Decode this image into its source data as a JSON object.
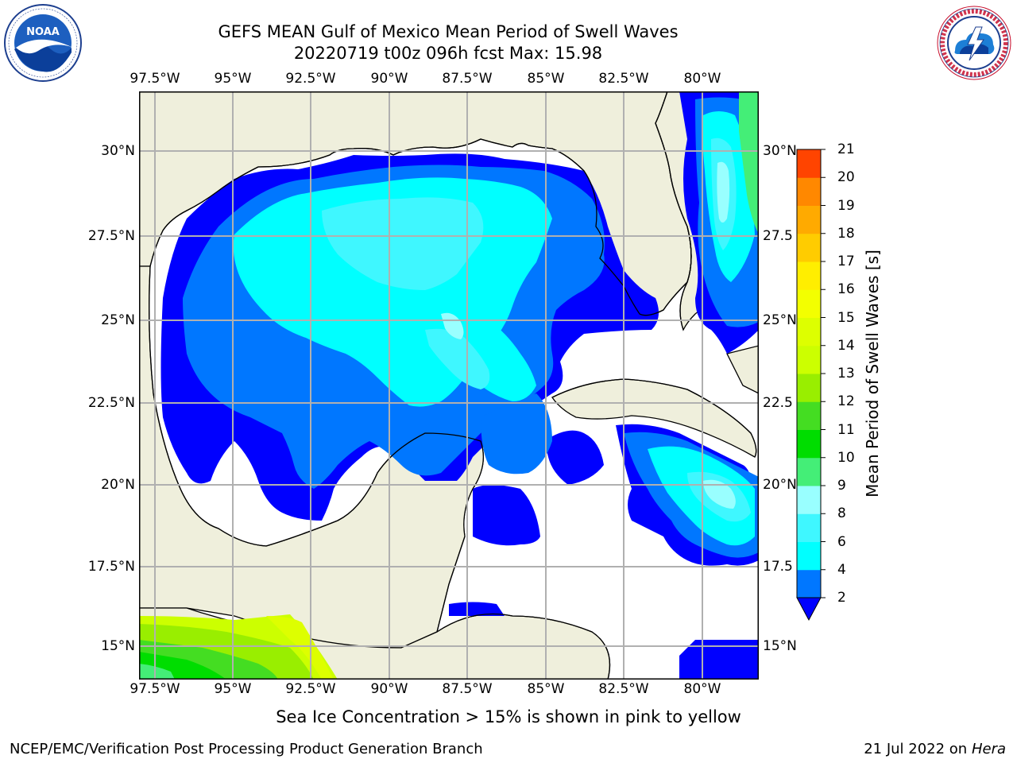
{
  "header": {
    "title_line1": "GEFS MEAN Gulf of Mexico Mean Period of Swell Waves",
    "title_line2": "20220719 t00z 096h fcst   Max: 15.98"
  },
  "logos": {
    "noaa": {
      "name": "NOAA",
      "ring_text": "NATIONAL OCEANIC AND ATMOSPHERIC ADMINISTRATION · U.S. DEPARTMENT OF COMMERCE"
    },
    "nws": {
      "ring_text": "NATIONAL WEATHER SERVICE"
    }
  },
  "map": {
    "lon_labels": [
      "97.5°W",
      "95°W",
      "92.5°W",
      "90°W",
      "87.5°W",
      "85°W",
      "82.5°W",
      "80°W"
    ],
    "lat_labels_left": [
      "30°N",
      "27.5°N",
      "25°N",
      "22.5°N",
      "20°N",
      "17.5°N",
      "15°N"
    ],
    "lat_labels_right": [
      "30°N",
      "27.5",
      "25°N",
      "22.5",
      "20°N",
      "17.5",
      "15°N"
    ],
    "colors": {
      "land": "#efefdc",
      "ocean_nodata": "#ffffff",
      "grid": "#b0b0b0"
    }
  },
  "colorbar": {
    "label": "Mean Period of Swell Waves [s]",
    "ticks": [
      "2",
      "4",
      "6",
      "8",
      "9",
      "10",
      "11",
      "12",
      "13",
      "14",
      "15",
      "16",
      "17",
      "18",
      "19",
      "20",
      "21"
    ],
    "colors": [
      "#0077ff",
      "#00ffff",
      "#3ff7ff",
      "#99ffff",
      "#44ee77",
      "#00dd00",
      "#44dd22",
      "#99ee00",
      "#ccff00",
      "#ddff00",
      "#f3ff00",
      "#ffee00",
      "#ffcc00",
      "#ffaa00",
      "#ff8800",
      "#ff4400",
      "#ff1100",
      "#ff0000"
    ],
    "under_color": "#0000ff"
  },
  "note": "Sea Ice Concentration > 15% is shown in pink to yellow",
  "footer": {
    "left": "NCEP/EMC/Verification Post Processing Product Generation Branch",
    "right_prefix": "21 Jul 2022 on ",
    "right_system": "Hera"
  }
}
